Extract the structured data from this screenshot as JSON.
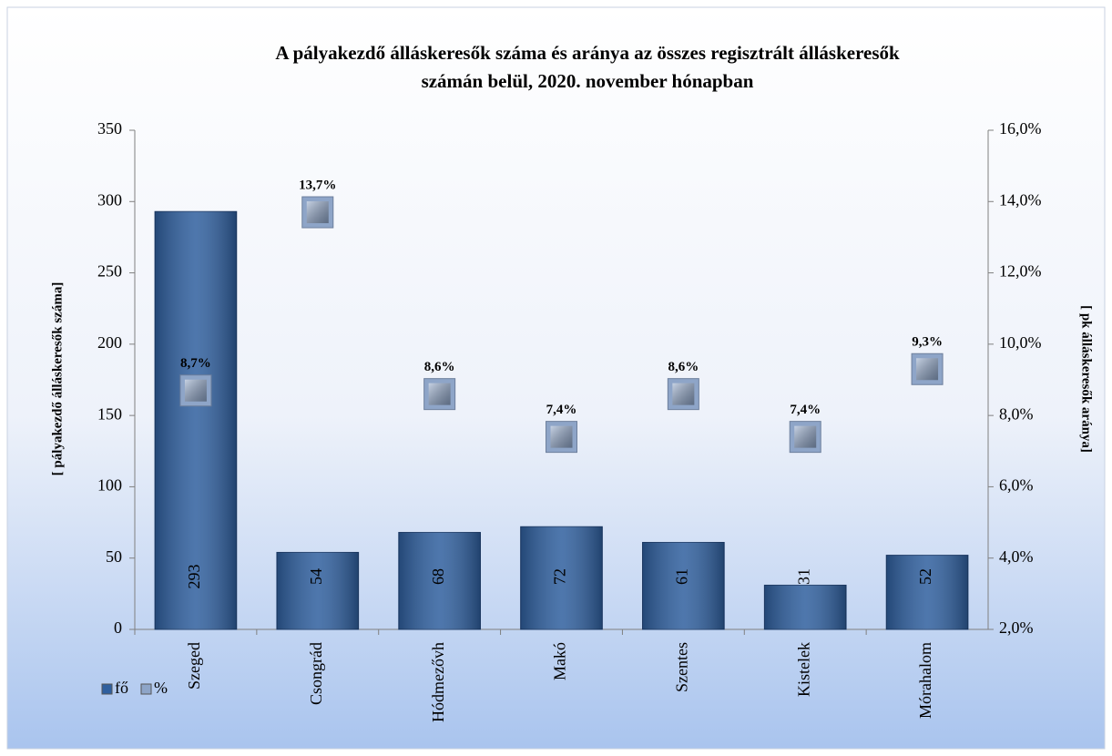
{
  "chart_data": {
    "type": "bar",
    "title": [
      "A pályakezdő álláskeresők száma és aránya az összes regisztrált álláskeresők",
      "számán belül, 2020. november hónapban"
    ],
    "ylabel": "[ pályakezdő  álláskeresők száma]",
    "y2label": "[ pk álláskeresők aránya]",
    "categories": [
      "Szeged",
      "Csongrád",
      "Hódmezővh",
      "Makó",
      "Szentes",
      "Kistelek",
      "Mórahalom"
    ],
    "series": [
      {
        "name": "fő",
        "type": "bar",
        "color": "#2f5f9e",
        "values": [
          293,
          54,
          68,
          72,
          61,
          31,
          52
        ]
      },
      {
        "name": "%",
        "type": "scatter",
        "axis": "y2",
        "color": "#8ea5c8",
        "values": [
          8.7,
          13.7,
          8.6,
          7.4,
          8.6,
          7.4,
          9.3
        ],
        "value_labels": [
          "8,7%",
          "13,7%",
          "8,6%",
          "7,4%",
          "8,6%",
          "7,4%",
          "9,3%"
        ]
      }
    ],
    "ylim": [
      0,
      350
    ],
    "yticks": [
      0,
      50,
      100,
      150,
      200,
      250,
      300,
      350
    ],
    "y2lim": [
      2,
      16
    ],
    "y2ticks": [
      {
        "value": 2,
        "label": "2,0%"
      },
      {
        "value": 4,
        "label": "4,0%"
      },
      {
        "value": 6,
        "label": "6,0%"
      },
      {
        "value": 8,
        "label": "8,0%"
      },
      {
        "value": 10,
        "label": "10,0%"
      },
      {
        "value": 12,
        "label": "12,0%"
      },
      {
        "value": 14,
        "label": "14,0%"
      },
      {
        "value": 16,
        "label": "16,0%"
      }
    ],
    "legend": "bottom-left",
    "grid": false
  }
}
